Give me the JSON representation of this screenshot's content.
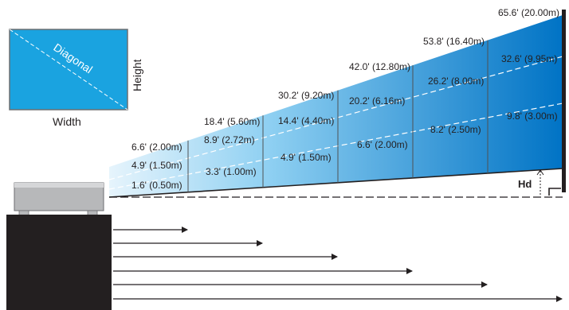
{
  "screen_icon": {
    "diagonal_label": "Diagonal",
    "height_label": "Height",
    "width_label": "Width"
  },
  "offset_label": "Hd",
  "colors": {
    "beam_light": "#e6f4fc",
    "beam_dark": "#0073c5",
    "screen_fill": "#1aa3e0",
    "projector_body": "#231f20",
    "projector_box": "#b7b8ba"
  },
  "distance_columns": [
    {
      "diagonal": "6.6' (2.00m)",
      "width": "4.9' (1.50m)",
      "height": "",
      "distance": "1.6' (0.50m)"
    },
    {
      "diagonal": "18.4' (5.60m)",
      "width": "8.9' (2.72m)",
      "height": "",
      "distance": "3.3' (1.00m)"
    },
    {
      "diagonal": "30.2' (9.20m)",
      "width": "14.4' (4.40m)",
      "height": "",
      "distance": "4.9' (1.50m)"
    },
    {
      "diagonal": "42.0' (12.80m)",
      "width": "20.2' (6.16m)",
      "height": "",
      "distance": "6.6' (2.00m)"
    },
    {
      "diagonal": "53.8' (16.40m)",
      "width": "26.2' (8.00m)",
      "height": "",
      "distance": "8.2' (2.50m)"
    },
    {
      "diagonal": "65.6' (20.00m)",
      "width": "32.6' (9.95m)",
      "height": "",
      "distance": "9.8' (3.00m)"
    }
  ]
}
